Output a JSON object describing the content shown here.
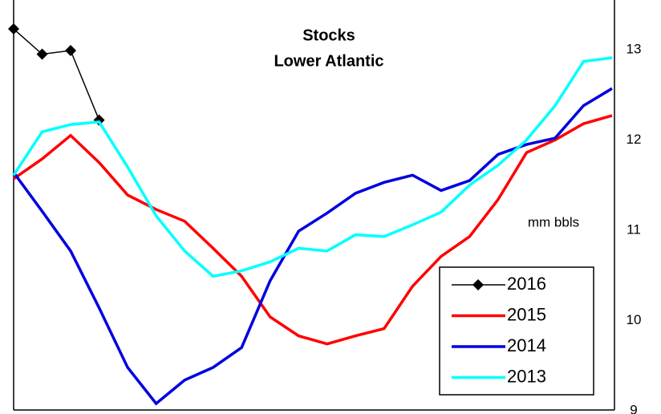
{
  "chart_data": {
    "type": "line",
    "title": "Stocks",
    "subtitle": "Lower Atlantic",
    "annotation": "mm bbls",
    "x": [
      1,
      2,
      3,
      4,
      5,
      6,
      7,
      8,
      9,
      10,
      11,
      12,
      13,
      14,
      15,
      16,
      17,
      18,
      19,
      20,
      21,
      22
    ],
    "xlim": [
      1,
      22
    ],
    "ylim": [
      9,
      13.55
    ],
    "yticks": [
      9,
      10,
      11,
      12,
      13
    ],
    "y_axis_side": "right",
    "legend": "lower right",
    "series": [
      {
        "name": "2016",
        "color": "#000000",
        "marker": "diamond",
        "values": [
          13.23,
          12.95,
          12.99,
          12.22,
          null,
          null,
          null,
          null,
          null,
          null,
          null,
          null,
          null,
          null,
          null,
          null,
          null,
          null,
          null,
          null,
          null,
          null
        ]
      },
      {
        "name": "2015",
        "color": "#ff0000",
        "values": [
          11.57,
          11.79,
          12.05,
          11.75,
          11.39,
          11.23,
          11.1,
          10.8,
          10.49,
          10.04,
          9.83,
          9.74,
          9.83,
          9.91,
          10.38,
          10.71,
          10.93,
          11.34,
          11.86,
          12.0,
          12.18,
          12.27
        ]
      },
      {
        "name": "2014",
        "color": "#0000e0",
        "values": [
          11.64,
          11.21,
          10.77,
          10.14,
          9.48,
          9.08,
          9.34,
          9.48,
          9.7,
          10.44,
          10.99,
          11.19,
          11.41,
          11.53,
          11.61,
          11.44,
          11.55,
          11.84,
          11.95,
          12.02,
          12.38,
          12.57
        ]
      },
      {
        "name": "2013",
        "color": "#00ffff",
        "values": [
          11.61,
          12.09,
          12.17,
          12.2,
          11.7,
          11.16,
          10.77,
          10.49,
          10.55,
          10.65,
          10.8,
          10.77,
          10.95,
          10.93,
          11.06,
          11.2,
          11.5,
          11.72,
          12.0,
          12.38,
          12.87,
          12.91
        ]
      }
    ]
  }
}
